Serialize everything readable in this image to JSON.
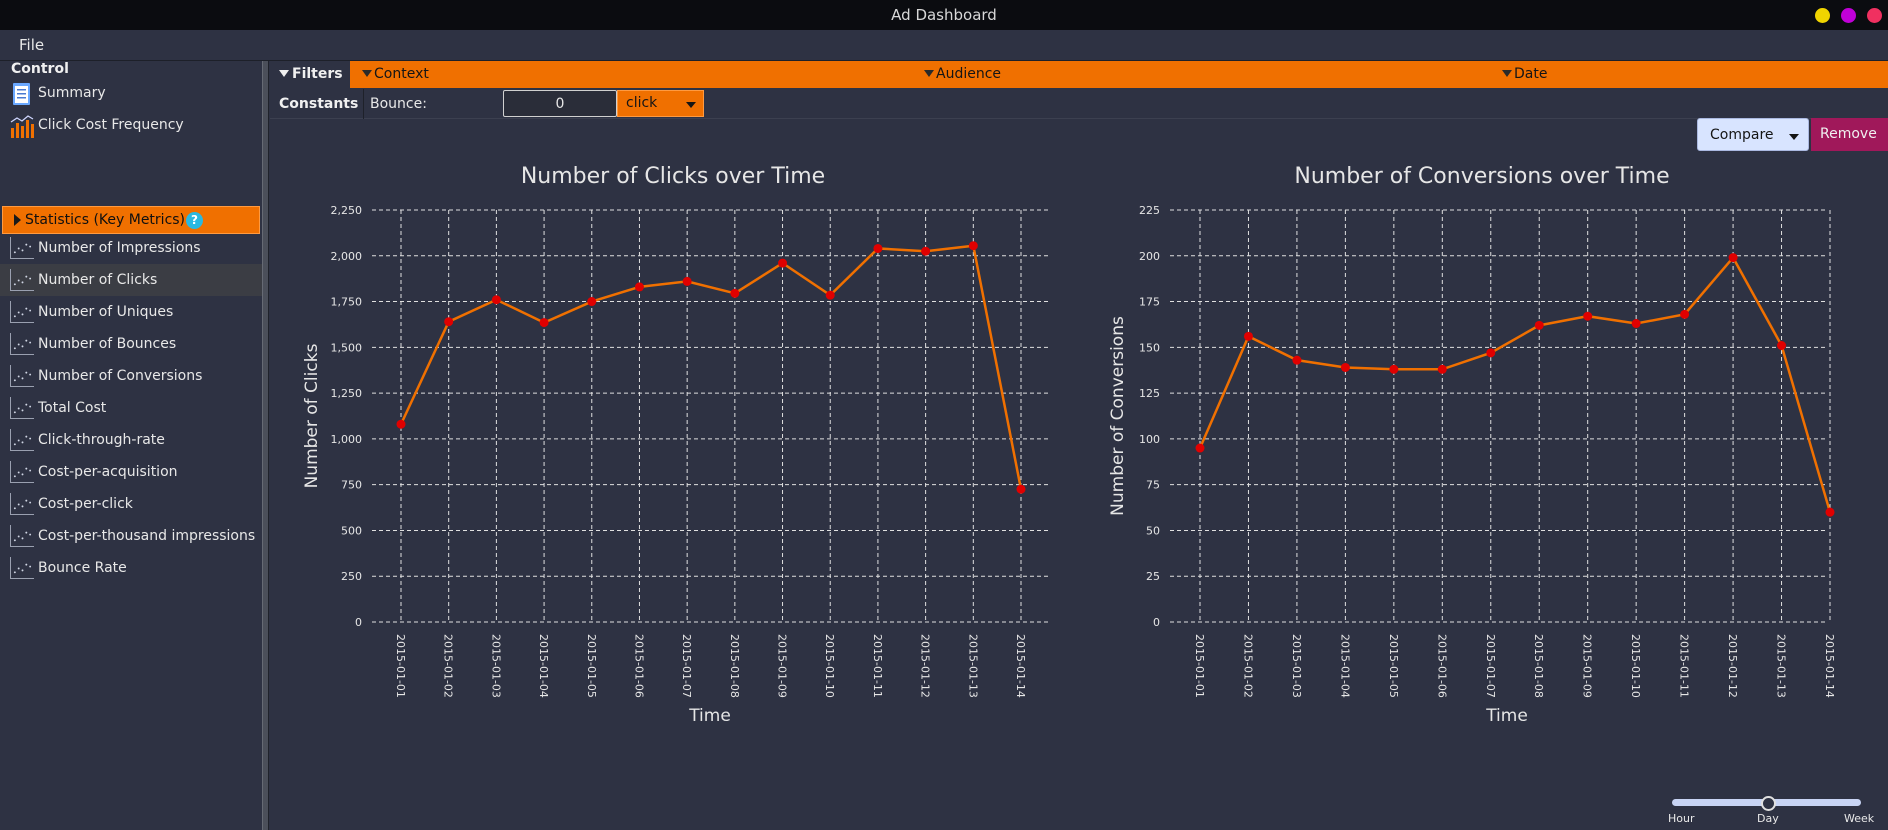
{
  "window": {
    "title": "Ad Dashboard"
  },
  "menu": {
    "file": "File"
  },
  "control": {
    "title": "Control",
    "items": [
      {
        "label": "Summary",
        "icon": "document-icon"
      },
      {
        "label": "Click Cost Frequency",
        "icon": "bar-chart-icon"
      }
    ]
  },
  "statistics": {
    "header": "Statistics (Key Metrics)",
    "help": "?",
    "selected_index": 1,
    "items": [
      "Number of Impressions",
      "Number of Clicks",
      "Number of Uniques",
      "Number of Bounces",
      "Number of Conversions",
      "Total Cost",
      "Click-through-rate",
      "Cost-per-acquisition",
      "Cost-per-click",
      "Cost-per-thousand impressions",
      "Bounce Rate"
    ]
  },
  "filters": {
    "label": "Filters",
    "tabs": [
      "Context",
      "Audience",
      "Date"
    ]
  },
  "constants": {
    "label": "Constants",
    "bounce_label": "Bounce:",
    "bounce_value": "0",
    "bounce_unit": "click"
  },
  "actions": {
    "compare": "Compare",
    "remove": "Remove"
  },
  "granularity": {
    "labels": [
      "Hour",
      "Day",
      "Week"
    ],
    "selected": "Day"
  },
  "colors": {
    "accent": "#f07000",
    "line": "#f07000",
    "point": "#e00000",
    "background": "#2e3243"
  },
  "chart_data": [
    {
      "type": "line",
      "title": "Number of Clicks over Time",
      "xlabel": "Time",
      "ylabel": "Number of Clicks",
      "ylim": [
        0,
        2250
      ],
      "yticks": [
        0,
        250,
        500,
        750,
        1000,
        1250,
        1500,
        1750,
        2000,
        2250
      ],
      "ytick_labels": [
        "0",
        "250",
        "500",
        "750",
        "1,000",
        "1,250",
        "1,500",
        "1,750",
        "2,000",
        "2,250"
      ],
      "grid": true,
      "categories": [
        "2015-01-01",
        "2015-01-02",
        "2015-01-03",
        "2015-01-04",
        "2015-01-05",
        "2015-01-06",
        "2015-01-07",
        "2015-01-08",
        "2015-01-09",
        "2015-01-10",
        "2015-01-11",
        "2015-01-12",
        "2015-01-13",
        "2015-01-14"
      ],
      "values": [
        1080,
        1640,
        1760,
        1635,
        1750,
        1830,
        1860,
        1795,
        1960,
        1785,
        2040,
        2025,
        2055,
        725
      ]
    },
    {
      "type": "line",
      "title": "Number of Conversions over Time",
      "xlabel": "Time",
      "ylabel": "Number of Conversions",
      "ylim": [
        0,
        225
      ],
      "yticks": [
        0,
        25,
        50,
        75,
        100,
        125,
        150,
        175,
        200,
        225
      ],
      "ytick_labels": [
        "0",
        "25",
        "50",
        "75",
        "100",
        "125",
        "150",
        "175",
        "200",
        "225"
      ],
      "grid": true,
      "categories": [
        "2015-01-01",
        "2015-01-02",
        "2015-01-03",
        "2015-01-04",
        "2015-01-05",
        "2015-01-06",
        "2015-01-07",
        "2015-01-08",
        "2015-01-09",
        "2015-01-10",
        "2015-01-11",
        "2015-01-12",
        "2015-01-13",
        "2015-01-14"
      ],
      "values": [
        95,
        156,
        143,
        139,
        138,
        138,
        147,
        162,
        167,
        163,
        168,
        199,
        151,
        60
      ]
    }
  ]
}
